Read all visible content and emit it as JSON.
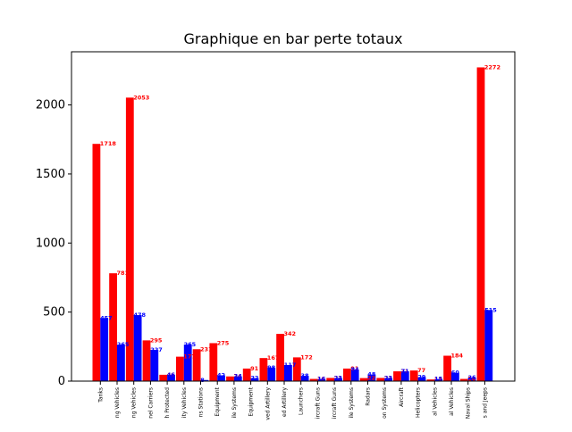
{
  "chart_data": {
    "type": "bar",
    "title": "Graphique en bar perte totaux",
    "xlabel": "",
    "ylabel": "",
    "ylim": [
      0,
      2385
    ],
    "yticks": [
      0,
      500,
      1000,
      1500,
      2000
    ],
    "grid": false,
    "colors": {
      "series_a": "#ff0000",
      "series_b": "#0000ff",
      "frame": "#000000",
      "background": "#ffffff"
    },
    "categories": [
      "Tanks",
      "ng Vehicles",
      "ng Vehicles",
      "nel Carriers",
      "h Protected",
      "ity Vehicles",
      "ns Stations",
      "Equipment",
      "ile Systems",
      "Equipment",
      "ved Artillery",
      "ed Artillery",
      "Launchers",
      "ircraft Guns",
      "ircraft Guns",
      "ile Systems",
      "Radars",
      "on Systems",
      "Aircraft",
      "Helicopters",
      "al Vehicles",
      "al Vehicles",
      "Naval Ships",
      "s and Jeeps"
    ],
    "series": [
      {
        "values": [
          1718,
          781,
          2053,
          295,
          46,
          177,
          231,
          275,
          34,
          91,
          167,
          342,
          172,
          16,
          23,
          91,
          22,
          23,
          71,
          77,
          12,
          184,
          16,
          2272
        ]
      },
      {
        "values": [
          457,
          265,
          478,
          227,
          46,
          265,
          8,
          42,
          34,
          22,
          98,
          117,
          38,
          16,
          23,
          84,
          48,
          23,
          71,
          29,
          15,
          60,
          26,
          515
        ]
      }
    ],
    "value_labels": [
      [
        "1718",
        "781",
        "2053",
        "295",
        "46",
        "177",
        "231",
        "275",
        "34",
        "91",
        "167",
        "342",
        "172",
        "16",
        "23",
        "91",
        "22",
        "23",
        "71",
        "77",
        "12",
        "184",
        "16",
        "2272"
      ],
      [
        "457",
        "265",
        "478",
        "227",
        "46",
        "265",
        "8",
        "42",
        "34",
        "22",
        "98",
        "117",
        "38",
        "16",
        "23",
        "84",
        "48",
        "23",
        "71",
        "29",
        "15",
        "60",
        "26",
        "515"
      ]
    ]
  }
}
